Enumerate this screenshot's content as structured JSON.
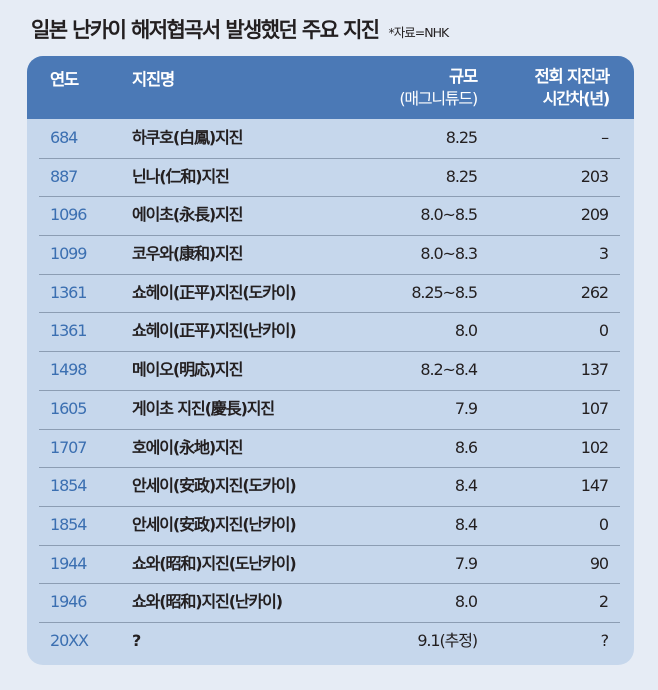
{
  "title": "일본 난카이 해저협곡서 발생했던 주요 지진",
  "source": "*자료=NHK",
  "header": {
    "year": "연도",
    "name": "지진명",
    "magnitude": "규모",
    "magnitude_sub": "(매그니튜드)",
    "gap": "전회 지진과",
    "gap_sub": "시간차(년)"
  },
  "colors": {
    "background": "#e6ecf5",
    "header": "#4b79b6",
    "body": "#c6d7ec",
    "year_text": "#3b6fb1"
  },
  "rows": [
    {
      "year": "684",
      "name": "하쿠호(白鳳)지진",
      "magnitude": "8.25",
      "gap": "–"
    },
    {
      "year": "887",
      "name": "닌나(仁和)지진",
      "magnitude": "8.25",
      "gap": "203"
    },
    {
      "year": "1096",
      "name": "에이초(永長)지진",
      "magnitude": "8.0~8.5",
      "gap": "209"
    },
    {
      "year": "1099",
      "name": "코우와(康和)지진",
      "magnitude": "8.0~8.3",
      "gap": "3"
    },
    {
      "year": "1361",
      "name": "쇼헤이(正平)지진(도카이)",
      "magnitude": "8.25~8.5",
      "gap": "262"
    },
    {
      "year": "1361",
      "name": "쇼헤이(正平)지진(난카이)",
      "magnitude": "8.0",
      "gap": "0"
    },
    {
      "year": "1498",
      "name": "메이오(明応)지진",
      "magnitude": "8.2~8.4",
      "gap": "137"
    },
    {
      "year": "1605",
      "name": "게이초 지진(慶長)지진",
      "magnitude": "7.9",
      "gap": "107"
    },
    {
      "year": "1707",
      "name": "호에이(永地)지진",
      "magnitude": "8.6",
      "gap": "102"
    },
    {
      "year": "1854",
      "name": "안세이(安政)지진(도카이)",
      "magnitude": "8.4",
      "gap": "147"
    },
    {
      "year": "1854",
      "name": "안세이(安政)지진(난카이)",
      "magnitude": "8.4",
      "gap": "0"
    },
    {
      "year": "1944",
      "name": "쇼와(昭和)지진(도난카이)",
      "magnitude": "7.9",
      "gap": "90"
    },
    {
      "year": "1946",
      "name": "쇼와(昭和)지진(난카이)",
      "magnitude": "8.0",
      "gap": "2"
    },
    {
      "year": "20XX",
      "name": "?",
      "magnitude": "9.1(추정)",
      "gap": "?"
    }
  ]
}
